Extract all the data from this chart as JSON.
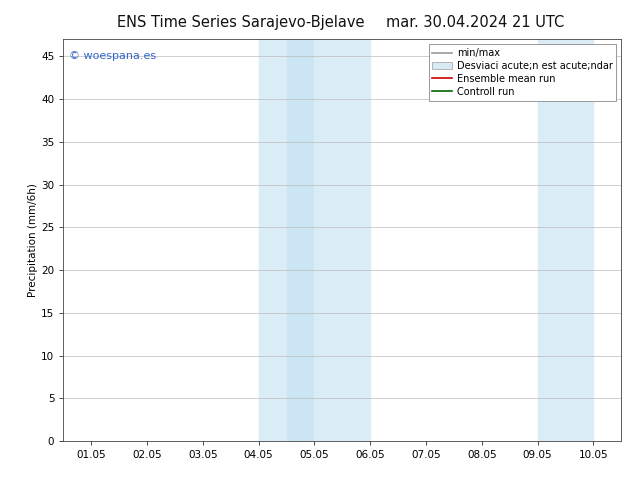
{
  "title_left": "ENS Time Series Sarajevo-Bjelave",
  "title_right": "mar. 30.04.2024 21 UTC",
  "ylabel": "Precipitation (mm/6h)",
  "ylim": [
    0,
    47
  ],
  "yticks": [
    0,
    5,
    10,
    15,
    20,
    25,
    30,
    35,
    40,
    45
  ],
  "x_labels": [
    "01.05",
    "02.05",
    "03.05",
    "04.05",
    "05.05",
    "06.05",
    "07.05",
    "08.05",
    "09.05",
    "10.05"
  ],
  "x_positions": [
    0,
    1,
    2,
    3,
    4,
    5,
    6,
    7,
    8,
    9
  ],
  "shade_regions": [
    {
      "xmin": 3.0,
      "xmax": 3.5,
      "color": "#daedf7"
    },
    {
      "xmin": 3.5,
      "xmax": 4.0,
      "color": "#cce5f5"
    },
    {
      "xmin": 4.0,
      "xmax": 5.0,
      "color": "#daedf7"
    },
    {
      "xmin": 8.0,
      "xmax": 9.0,
      "color": "#daedf7"
    }
  ],
  "watermark_text": "© woespana.es",
  "watermark_color": "#3366cc",
  "watermark_fontsize": 8,
  "legend_entries": [
    {
      "label": "min/max",
      "type": "line",
      "color": "#999999"
    },
    {
      "label": "Desviaci acute;n est acute;ndar",
      "type": "patch",
      "facecolor": "#d8eaf5",
      "edgecolor": "#aaaaaa"
    },
    {
      "label": "Ensemble mean run",
      "type": "line",
      "color": "#cc0000"
    },
    {
      "label": "Controll run",
      "type": "line",
      "color": "#006600"
    }
  ],
  "bg_color": "#ffffff",
  "plot_bg_color": "#ffffff",
  "title_fontsize": 10.5,
  "ylabel_fontsize": 7.5,
  "grid_color": "#bbbbbb",
  "tick_label_fontsize": 7.5,
  "legend_fontsize": 7,
  "fig_width": 6.34,
  "fig_height": 4.9,
  "dpi": 100
}
